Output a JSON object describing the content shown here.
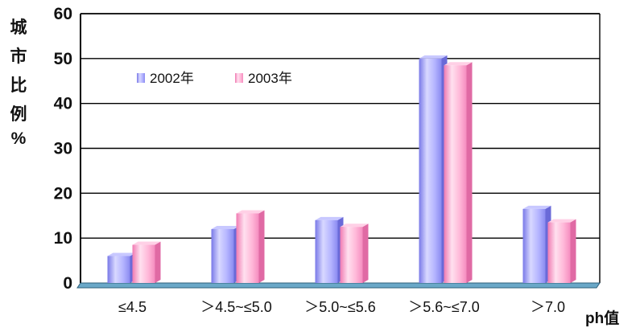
{
  "chart_data": {
    "type": "bar",
    "title": "",
    "ylabel": "城市比例%",
    "ylabel_chars": [
      "城",
      "市",
      "比",
      "例",
      "%"
    ],
    "xlabel": "ph值",
    "categories": [
      "≤4.5",
      "＞4.5~≤5.0",
      "＞5.0~≤5.6",
      "＞5.6~≤7.0",
      "＞7.0"
    ],
    "series": [
      {
        "name": "2002年",
        "values": [
          6,
          12,
          14,
          50,
          16.5
        ],
        "color": "#9999ff"
      },
      {
        "name": "2003年",
        "values": [
          8.5,
          15.5,
          12.5,
          48.5,
          13.5
        ],
        "color": "#ff99cc"
      }
    ],
    "ylim": [
      0,
      60
    ],
    "yticks": [
      0,
      10,
      20,
      30,
      40,
      50,
      60
    ],
    "grid": true,
    "legend_position": "top-left",
    "style": "3d"
  }
}
